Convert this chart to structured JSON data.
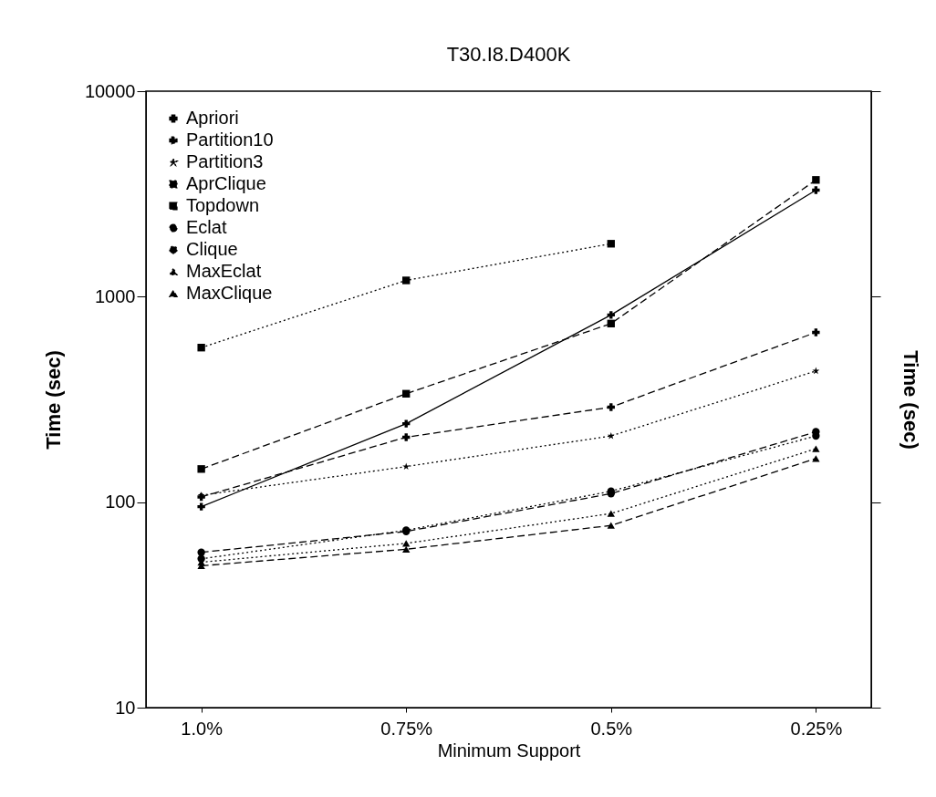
{
  "chart_data": {
    "type": "line",
    "title": "T30.I8.D400K",
    "xlabel": "Minimum Support",
    "ylabel": "Time (sec)",
    "y2label": "Time (sec)",
    "categories": [
      "1.0%",
      "0.75%",
      "0.5%",
      "0.25%"
    ],
    "log": "y",
    "ylim": [
      10,
      10000
    ],
    "yticks": [
      10,
      100,
      1000,
      10000
    ],
    "legend": "top left",
    "grid": false,
    "series": [
      {
        "name": "Apriori",
        "color": "#000000",
        "marker": "cross",
        "line_style": "solid",
        "values": [
          95,
          241,
          815,
          3300
        ]
      },
      {
        "name": "Partition10",
        "color": "#000000",
        "marker": "cross",
        "line_style": "dashed",
        "values": [
          106,
          207,
          290,
          670
        ]
      },
      {
        "name": "Partition3",
        "color": "#000000",
        "marker": "star",
        "line_style": "dotted",
        "values": [
          108,
          149,
          210,
          435
        ]
      },
      {
        "name": "AprClique",
        "color": "#000000",
        "marker": "square",
        "line_style": "dotted",
        "values": [
          565,
          1200,
          1810,
          null
        ]
      },
      {
        "name": "Topdown",
        "color": "#000000",
        "marker": "square",
        "line_style": "dashed",
        "values": [
          145,
          337,
          740,
          3700
        ]
      },
      {
        "name": "Eclat",
        "color": "#000000",
        "marker": "circle",
        "line_style": "dashed",
        "values": [
          57,
          72,
          110,
          220
        ]
      },
      {
        "name": "Clique",
        "color": "#000000",
        "marker": "circle",
        "line_style": "dotted",
        "values": [
          53,
          73,
          113,
          210
        ]
      },
      {
        "name": "MaxEclat",
        "color": "#000000",
        "marker": "triangle",
        "line_style": "dotted",
        "values": [
          51,
          63,
          88,
          182
        ]
      },
      {
        "name": "MaxClique",
        "color": "#000000",
        "marker": "triangle",
        "line_style": "dashed",
        "values": [
          49,
          59,
          77,
          163
        ]
      }
    ]
  }
}
